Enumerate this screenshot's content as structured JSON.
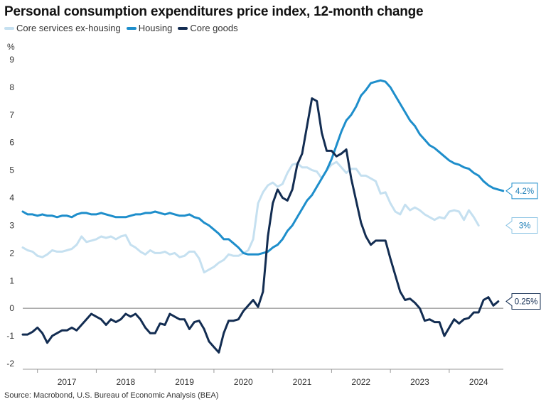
{
  "chart_data": {
    "type": "line",
    "title": "Personal consumption expenditures price index, 12-month change",
    "ylabel": "%",
    "xlabel": "",
    "ylim": [
      -2,
      9
    ],
    "yticks": [
      "-2",
      "-1",
      "0",
      "1",
      "2",
      "3",
      "4",
      "5",
      "6",
      "7",
      "8",
      "9"
    ],
    "xlim": [
      2016.75,
      2024.92
    ],
    "xticks": [
      {
        "year": 2017,
        "label": "2017"
      },
      {
        "year": 2018,
        "label": "2018"
      },
      {
        "year": 2019,
        "label": "2019"
      },
      {
        "year": 2020,
        "label": "2020"
      },
      {
        "year": 2021,
        "label": "2021"
      },
      {
        "year": 2022,
        "label": "2022"
      },
      {
        "year": 2023,
        "label": "2023"
      },
      {
        "year": 2024,
        "label": "2024"
      }
    ],
    "source": "Source: Macrobond, U.S. Bureau of Economic Analysis (BEA)",
    "series": [
      {
        "name": "Core services ex-housing",
        "color": "#c5e0f0",
        "callout": "3%",
        "start": 2016.75,
        "values": [
          2.2,
          2.1,
          2.05,
          1.9,
          1.85,
          1.95,
          2.1,
          2.05,
          2.05,
          2.1,
          2.15,
          2.3,
          2.6,
          2.4,
          2.45,
          2.5,
          2.6,
          2.55,
          2.6,
          2.5,
          2.6,
          2.65,
          2.3,
          2.2,
          2.05,
          1.95,
          2.1,
          2.0,
          2.0,
          2.05,
          1.95,
          2.0,
          1.85,
          1.9,
          2.05,
          2.05,
          1.8,
          1.3,
          1.4,
          1.5,
          1.65,
          1.75,
          1.95,
          1.9,
          1.9,
          2.0,
          2.1,
          2.5,
          3.8,
          4.2,
          4.45,
          4.55,
          4.4,
          4.5,
          4.9,
          5.2,
          5.25,
          5.1,
          5.1,
          5.0,
          4.95,
          4.7,
          5.0,
          5.2,
          5.3,
          5.1,
          4.9,
          5.05,
          5.05,
          4.8,
          4.8,
          4.7,
          4.6,
          4.15,
          4.2,
          3.8,
          3.5,
          3.4,
          3.75,
          3.55,
          3.65,
          3.55,
          3.4,
          3.3,
          3.2,
          3.3,
          3.25,
          3.5,
          3.55,
          3.5,
          3.2,
          3.55,
          3.3,
          3.0
        ]
      },
      {
        "name": "Housing",
        "color": "#1e8ecb",
        "callout": "4.2%",
        "start": 2016.75,
        "values": [
          3.5,
          3.4,
          3.4,
          3.35,
          3.4,
          3.35,
          3.35,
          3.3,
          3.35,
          3.35,
          3.3,
          3.4,
          3.45,
          3.45,
          3.4,
          3.4,
          3.45,
          3.4,
          3.35,
          3.3,
          3.3,
          3.3,
          3.35,
          3.4,
          3.4,
          3.45,
          3.45,
          3.5,
          3.45,
          3.4,
          3.45,
          3.4,
          3.35,
          3.35,
          3.4,
          3.3,
          3.25,
          3.1,
          3.0,
          2.85,
          2.7,
          2.5,
          2.5,
          2.35,
          2.2,
          2.0,
          1.95,
          1.95,
          1.95,
          2.0,
          2.05,
          2.2,
          2.3,
          2.5,
          2.8,
          3.0,
          3.3,
          3.6,
          3.9,
          4.1,
          4.4,
          4.7,
          5.0,
          5.4,
          5.9,
          6.4,
          6.8,
          7.0,
          7.3,
          7.7,
          7.9,
          8.15,
          8.2,
          8.25,
          8.2,
          8.0,
          7.7,
          7.4,
          7.1,
          6.8,
          6.6,
          6.3,
          6.1,
          5.9,
          5.8,
          5.65,
          5.5,
          5.35,
          5.25,
          5.2,
          5.1,
          5.05,
          4.9,
          4.8,
          4.6,
          4.45,
          4.35,
          4.3,
          4.25
        ]
      },
      {
        "name": "Core goods",
        "color": "#132d52",
        "callout": "0.25%",
        "start": 2016.75,
        "values": [
          -0.95,
          -0.95,
          -0.85,
          -0.7,
          -0.9,
          -1.25,
          -1.0,
          -0.9,
          -0.8,
          -0.8,
          -0.7,
          -0.8,
          -0.6,
          -0.4,
          -0.2,
          -0.3,
          -0.4,
          -0.6,
          -0.4,
          -0.5,
          -0.4,
          -0.2,
          -0.3,
          -0.2,
          -0.4,
          -0.7,
          -0.9,
          -0.9,
          -0.55,
          -0.6,
          -0.2,
          -0.3,
          -0.4,
          -0.4,
          -0.75,
          -0.5,
          -0.45,
          -0.75,
          -1.2,
          -1.4,
          -1.6,
          -0.9,
          -0.45,
          -0.45,
          -0.4,
          -0.1,
          0.1,
          0.3,
          0.05,
          0.6,
          2.6,
          3.8,
          4.3,
          4.0,
          3.9,
          4.3,
          5.2,
          5.6,
          6.6,
          7.6,
          7.5,
          6.35,
          5.7,
          5.7,
          5.5,
          5.6,
          5.75,
          4.7,
          3.9,
          3.1,
          2.6,
          2.3,
          2.45,
          2.45,
          2.45,
          1.8,
          1.2,
          0.6,
          0.3,
          0.35,
          0.2,
          0.0,
          -0.45,
          -0.4,
          -0.5,
          -0.5,
          -1.0,
          -0.7,
          -0.4,
          -0.55,
          -0.4,
          -0.35,
          -0.15,
          -0.15,
          0.3,
          0.4,
          0.1,
          0.25
        ]
      }
    ]
  }
}
